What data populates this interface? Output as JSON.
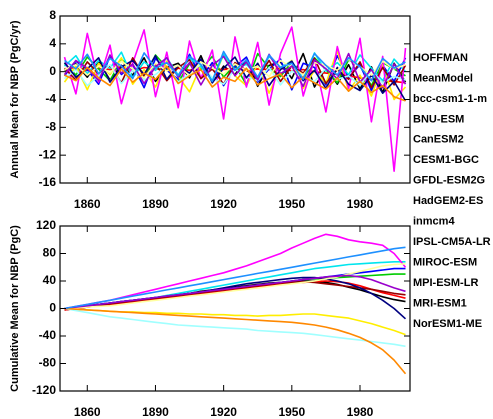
{
  "chart_data": [
    {
      "type": "line",
      "ylabel": "Annual Mean for NBP (PgC/yr)",
      "xlim": [
        1848,
        2002
      ],
      "xticks": [
        1860,
        1890,
        1920,
        1950,
        1980
      ],
      "ylim": [
        -16,
        8
      ],
      "yticks": [
        -16,
        -12,
        -8,
        -4,
        0,
        4,
        8
      ],
      "legend": "right",
      "x": [
        1850,
        1855,
        1860,
        1865,
        1870,
        1875,
        1880,
        1885,
        1890,
        1895,
        1900,
        1905,
        1910,
        1915,
        1920,
        1925,
        1930,
        1935,
        1940,
        1945,
        1950,
        1955,
        1960,
        1965,
        1970,
        1975,
        1980,
        1985,
        1990,
        1995,
        2000
      ],
      "series": [
        {
          "name": "HOFFMAN",
          "color": "#000000",
          "values": [
            0.2,
            1.1,
            -0.8,
            1.5,
            -1.2,
            0.9,
            -0.5,
            2.0,
            -1.4,
            0.6,
            1.2,
            -0.9,
            2.3,
            -1.6,
            0.8,
            -0.4,
            1.7,
            -2.1,
            0.9,
            1.4,
            -1.0,
            2.6,
            -2.2,
            0.5,
            -1.8,
            1.0,
            -2.5,
            0.7,
            -3.0,
            1.2,
            -1.5
          ]
        },
        {
          "name": "MeanModel",
          "color": "#ff0000",
          "values": [
            0.4,
            0.6,
            0.2,
            0.5,
            0.3,
            0.7,
            0.1,
            0.6,
            0.4,
            0.3,
            0.5,
            0.2,
            0.6,
            0.4,
            0.3,
            0.5,
            0.2,
            0.4,
            0.3,
            0.5,
            0.1,
            0.3,
            0.0,
            -0.2,
            -0.4,
            -0.6,
            -0.9,
            -1.1,
            -1.3,
            -1.4,
            -1.6
          ]
        },
        {
          "name": "bcc-csm1-1-m",
          "color": "#00cc00",
          "values": [
            1.2,
            -0.5,
            2.1,
            0.4,
            -1.3,
            1.8,
            0.2,
            -0.9,
            2.4,
            0.6,
            -1.5,
            1.1,
            0.3,
            2.2,
            -0.8,
            1.0,
            -1.9,
            2.6,
            0.5,
            -0.7,
            1.4,
            -1.2,
            2.0,
            0.3,
            -1.6,
            1.7,
            0.8,
            -2.0,
            1.3,
            0.4,
            -0.6
          ]
        },
        {
          "name": "BNU-ESM",
          "color": "#0000ff",
          "values": [
            -0.6,
            1.5,
            0.3,
            -1.8,
            2.2,
            -0.4,
            1.0,
            -2.3,
            1.9,
            0.2,
            -1.1,
            2.5,
            -0.9,
            1.3,
            -2.0,
            0.7,
            2.1,
            -1.5,
            0.4,
            1.8,
            -2.6,
            1.2,
            0.6,
            -1.9,
            2.3,
            -0.8,
            1.0,
            -2.7,
            0.9,
            -1.4,
            2.0
          ]
        },
        {
          "name": "CanESM2",
          "color": "#ffee00",
          "values": [
            -1.5,
            0.8,
            -2.6,
            1.2,
            -0.4,
            2.0,
            -1.8,
            0.3,
            -2.2,
            1.5,
            -0.7,
            -2.9,
            0.9,
            -1.3,
            2.4,
            -0.6,
            -2.0,
            1.1,
            -3.1,
            0.5,
            1.6,
            -2.4,
            0.2,
            -1.7,
            3.0,
            -2.8,
            -0.5,
            -3.5,
            1.0,
            -4.0,
            -2.2
          ]
        },
        {
          "name": "CESM1-BGC",
          "color": "#00e5ee",
          "values": [
            0.8,
            2.3,
            -0.3,
            1.6,
            0.5,
            2.8,
            -0.9,
            1.4,
            0.2,
            2.0,
            -0.5,
            1.9,
            0.7,
            -1.2,
            2.5,
            0.3,
            1.1,
            -0.8,
            2.2,
            0.6,
            1.5,
            -1.0,
            2.7,
            0.1,
            1.3,
            -0.4,
            2.4,
            0.5,
            -1.3,
            1.8,
            0.0
          ]
        },
        {
          "name": "GFDL-ESM2G",
          "color": "#ff00ff",
          "values": [
            2.1,
            -3.2,
            5.5,
            -1.5,
            3.8,
            -4.6,
            1.2,
            6.0,
            -3.6,
            2.8,
            -5.2,
            4.4,
            -1.0,
            3.1,
            -6.8,
            5.0,
            -2.2,
            4.2,
            -4.8,
            2.6,
            6.4,
            -3.5,
            1.8,
            -5.8,
            3.6,
            -2.4,
            4.8,
            -7.2,
            2.2,
            -14.3,
            3.4
          ]
        },
        {
          "name": "HadGEM2-ES",
          "color": "#990000",
          "values": [
            0.5,
            -1.2,
            1.4,
            -0.3,
            0.9,
            -1.6,
            2.0,
            -0.7,
            1.1,
            -1.3,
            0.6,
            1.7,
            -1.0,
            0.4,
            -1.8,
            1.3,
            0.2,
            -0.9,
            1.6,
            -1.4,
            0.8,
            -0.2,
            1.9,
            -1.7,
            0.3,
            -1.1,
            1.4,
            -2.3,
            0.6,
            -1.9,
            0.9
          ]
        },
        {
          "name": "inmcm4",
          "color": "#a0ffff",
          "values": [
            -1.0,
            0.3,
            -2.0,
            -0.6,
            1.0,
            -1.7,
            0.2,
            -1.2,
            -0.4,
            0.8,
            -1.5,
            -0.3,
            1.1,
            -0.9,
            -1.8,
            0.4,
            -0.7,
            -1.3,
            0.6,
            -1.9,
            0.1,
            -0.8,
            -1.4,
            0.5,
            -1.1,
            -0.6,
            -2.0,
            0.2,
            -1.6,
            -0.7,
            -1.2
          ]
        },
        {
          "name": "IPSL-CM5A-LR",
          "color": "#000080",
          "values": [
            1.3,
            -0.8,
            0.4,
            2.0,
            -1.5,
            0.7,
            1.6,
            -0.4,
            2.3,
            -1.1,
            0.9,
            -0.2,
            1.8,
            -1.6,
            0.5,
            2.1,
            -0.9,
            1.2,
            -2.0,
            0.3,
            1.5,
            -1.3,
            0.2,
            -2.4,
            0.6,
            -1.8,
            -2.7,
            -0.5,
            -3.1,
            -1.4,
            -4.2
          ]
        },
        {
          "name": "MIROC-ESM",
          "color": "#ffffa0",
          "values": [
            0.3,
            1.0,
            -0.5,
            0.8,
            -0.2,
            1.5,
            0.4,
            -0.9,
            1.2,
            0.1,
            0.9,
            -0.6,
            1.4,
            0.5,
            -0.3,
            1.1,
            0.2,
            0.8,
            -0.7,
            1.6,
            0.6,
            -0.4,
            1.3,
            0.9,
            0.2,
            1.8,
            0.7,
            -0.5,
            1.5,
            0.4,
            1.0
          ]
        },
        {
          "name": "MPI-ESM-LR",
          "color": "#9900cc",
          "values": [
            -0.4,
            1.6,
            0.5,
            -1.3,
            2.4,
            -0.2,
            1.1,
            -1.7,
            0.7,
            2.0,
            -0.8,
            1.3,
            -1.9,
            0.9,
            2.2,
            -0.6,
            1.4,
            -1.2,
            2.5,
            -0.3,
            0.8,
            -2.1,
            1.7,
            0.4,
            -1.0,
            2.6,
            -1.5,
            0.3,
            -2.3,
            1.1,
            -1.8
          ]
        },
        {
          "name": "MRI-ESM1",
          "color": "#ff8800",
          "values": [
            -0.5,
            -1.3,
            0.6,
            -0.9,
            -2.0,
            0.4,
            -1.5,
            -0.2,
            -1.1,
            0.8,
            -1.7,
            -0.6,
            0.3,
            -2.2,
            -0.8,
            -1.4,
            0.5,
            -1.9,
            -1.0,
            -0.3,
            -2.3,
            -0.7,
            -1.6,
            -2.5,
            -0.9,
            -2.8,
            -1.4,
            -3.0,
            -2.0,
            -3.6,
            -4.2
          ]
        },
        {
          "name": "NorESM1-ME",
          "color": "#1e90ff",
          "values": [
            1.6,
            0.4,
            2.5,
            -0.3,
            1.9,
            0.8,
            -1.0,
            2.7,
            0.5,
            1.3,
            -0.6,
            2.2,
            1.0,
            -1.4,
            2.9,
            0.2,
            1.7,
            -0.8,
            2.4,
            0.6,
            1.2,
            -1.1,
            2.6,
            0.9,
            -0.5,
            2.0,
            0.7,
            -1.3,
            1.9,
            0.5,
            1.4
          ]
        }
      ]
    },
    {
      "type": "line",
      "ylabel": "Cumulative Mean for NBP (PgC)",
      "xlim": [
        1848,
        2002
      ],
      "xticks": [
        1860,
        1890,
        1920,
        1950,
        1980
      ],
      "ylim": [
        -120,
        120
      ],
      "yticks": [
        -120,
        -80,
        -40,
        0,
        40,
        80,
        120
      ],
      "x": [
        1850,
        1855,
        1860,
        1865,
        1870,
        1875,
        1880,
        1885,
        1890,
        1895,
        1900,
        1905,
        1910,
        1915,
        1920,
        1925,
        1930,
        1935,
        1940,
        1945,
        1950,
        1955,
        1960,
        1965,
        1970,
        1975,
        1980,
        1985,
        1990,
        1995,
        2000
      ],
      "series": [
        {
          "color": "#000000",
          "values": [
            -2,
            0,
            2,
            4,
            6,
            8,
            10,
            12,
            14,
            17,
            20,
            22,
            25,
            27,
            29,
            31,
            33,
            35,
            37,
            38,
            39,
            40,
            40,
            38,
            35,
            31,
            27,
            22,
            17,
            13,
            10
          ]
        },
        {
          "color": "#ff0000",
          "values": [
            -2,
            0,
            2,
            4,
            5,
            7,
            9,
            11,
            13,
            15,
            17,
            19,
            21,
            23,
            25,
            27,
            29,
            31,
            33,
            35,
            37,
            38,
            39,
            40,
            39,
            37,
            33,
            28,
            23,
            19,
            15
          ]
        },
        {
          "color": "#00cc00",
          "values": [
            0,
            2,
            4,
            6,
            8,
            10,
            12,
            14,
            16,
            18,
            20,
            22,
            24,
            26,
            28,
            30,
            32,
            34,
            36,
            38,
            40,
            42,
            43,
            44,
            45,
            46,
            47,
            48,
            49,
            50,
            50
          ]
        },
        {
          "color": "#0000ff",
          "values": [
            0,
            2,
            4,
            6,
            8,
            10,
            12,
            14,
            16,
            18,
            20,
            22,
            24,
            26,
            28,
            30,
            32,
            34,
            36,
            38,
            40,
            42,
            44,
            46,
            48,
            50,
            52,
            54,
            56,
            58,
            58
          ]
        },
        {
          "color": "#ffee00",
          "values": [
            0,
            -1,
            -2,
            -3,
            -4,
            -5,
            -5,
            -6,
            -6,
            -7,
            -7,
            -8,
            -8,
            -9,
            -9,
            -10,
            -10,
            -11,
            -10,
            -10,
            -9,
            -8,
            -8,
            -10,
            -12,
            -14,
            -18,
            -22,
            -27,
            -32,
            -38
          ]
        },
        {
          "color": "#00e5ee",
          "values": [
            0,
            2,
            4,
            6,
            8,
            10,
            12,
            14,
            16,
            19,
            22,
            25,
            28,
            31,
            34,
            37,
            40,
            43,
            46,
            49,
            52,
            55,
            58,
            60,
            62,
            64,
            65,
            66,
            67,
            68,
            68
          ]
        },
        {
          "color": "#ff00ff",
          "values": [
            0,
            3,
            6,
            9,
            12,
            16,
            20,
            24,
            28,
            32,
            36,
            40,
            44,
            48,
            52,
            57,
            62,
            68,
            74,
            80,
            88,
            95,
            102,
            108,
            105,
            100,
            97,
            95,
            92,
            80,
            60
          ]
        },
        {
          "color": "#990000",
          "values": [
            0,
            1,
            3,
            5,
            7,
            9,
            11,
            13,
            15,
            17,
            19,
            21,
            23,
            25,
            27,
            29,
            31,
            33,
            35,
            37,
            38,
            39,
            38,
            36,
            34,
            32,
            30,
            28,
            25,
            22,
            20
          ]
        },
        {
          "color": "#a0ffff",
          "values": [
            0,
            -3,
            -6,
            -9,
            -12,
            -14,
            -16,
            -18,
            -20,
            -22,
            -24,
            -25,
            -26,
            -27,
            -28,
            -29,
            -30,
            -32,
            -33,
            -34,
            -35,
            -36,
            -38,
            -40,
            -42,
            -44,
            -46,
            -48,
            -50,
            -52,
            -55
          ]
        },
        {
          "color": "#000080",
          "values": [
            0,
            2,
            4,
            6,
            8,
            10,
            12,
            14,
            16,
            18,
            20,
            22,
            24,
            27,
            30,
            33,
            36,
            38,
            40,
            42,
            44,
            45,
            45,
            43,
            40,
            36,
            30,
            22,
            12,
            0,
            -15
          ]
        },
        {
          "color": "#ffffa0",
          "values": [
            0,
            1,
            2,
            3,
            4,
            6,
            8,
            10,
            12,
            14,
            16,
            18,
            20,
            22,
            24,
            26,
            28,
            30,
            32,
            34,
            36,
            38,
            40,
            43,
            46,
            50,
            54,
            58,
            62,
            64,
            65
          ]
        },
        {
          "color": "#9900cc",
          "values": [
            0,
            2,
            4,
            6,
            8,
            10,
            12,
            14,
            16,
            18,
            20,
            22,
            24,
            26,
            28,
            30,
            32,
            34,
            36,
            38,
            40,
            42,
            44,
            46,
            47,
            48,
            46,
            42,
            36,
            30,
            25
          ]
        },
        {
          "color": "#ff8800",
          "values": [
            0,
            -1,
            -2,
            -3,
            -4,
            -5,
            -6,
            -7,
            -8,
            -9,
            -10,
            -11,
            -12,
            -13,
            -14,
            -15,
            -16,
            -17,
            -18,
            -19,
            -20,
            -22,
            -24,
            -27,
            -31,
            -36,
            -42,
            -50,
            -60,
            -75,
            -95
          ]
        },
        {
          "color": "#1e90ff",
          "values": [
            0,
            3,
            6,
            9,
            12,
            15,
            18,
            21,
            24,
            27,
            30,
            33,
            36,
            39,
            42,
            45,
            48,
            51,
            54,
            57,
            60,
            63,
            66,
            69,
            72,
            75,
            78,
            81,
            84,
            87,
            89
          ]
        }
      ]
    }
  ]
}
